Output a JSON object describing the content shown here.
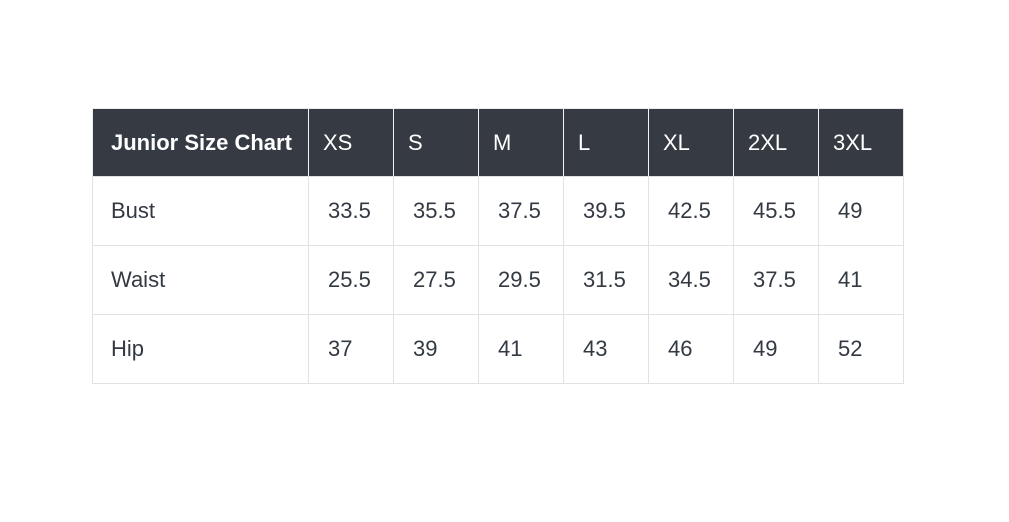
{
  "theme": {
    "header_background": "#363a43",
    "header_text_color": "#ffffff",
    "body_text_color": "#333942",
    "border_color": "#e0e3e5",
    "page_background": "#ffffff"
  },
  "chart_data": {
    "type": "table",
    "title": "Junior Size Chart",
    "columns": [
      "XS",
      "S",
      "M",
      "L",
      "XL",
      "2XL",
      "3XL"
    ],
    "rows": [
      {
        "label": "Bust",
        "values": [
          "33.5",
          "35.5",
          "37.5",
          "39.5",
          "42.5",
          "45.5",
          "49"
        ]
      },
      {
        "label": "Waist",
        "values": [
          "25.5",
          "27.5",
          "29.5",
          "31.5",
          "34.5",
          "37.5",
          "41"
        ]
      },
      {
        "label": "Hip",
        "values": [
          "37",
          "39",
          "41",
          "43",
          "46",
          "49",
          "52"
        ]
      }
    ]
  }
}
